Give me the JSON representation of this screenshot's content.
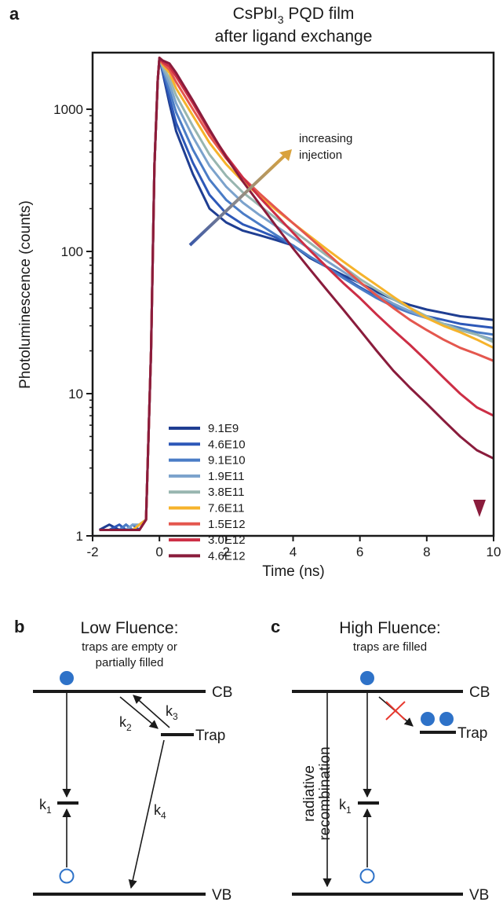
{
  "figure": {
    "panel_a": "a",
    "panel_b": "b",
    "panel_c": "c"
  },
  "chart_data": {
    "type": "line",
    "title": "CsPbI3 PQD film",
    "title_line1_prefix": "CsPbI",
    "title_line1_sub": "3",
    "title_line1_suffix": " PQD film",
    "subtitle": "after ligand exchange",
    "xlabel": "Time (ns)",
    "ylabel": "Photoluminescence (counts)",
    "xlim": [
      -2,
      10
    ],
    "ylim": [
      1,
      2500
    ],
    "yscale": "log",
    "xticks": [
      "-2",
      "0",
      "2",
      "4",
      "6",
      "8",
      "10"
    ],
    "yticks": [
      "1",
      "10",
      "100",
      "1000"
    ],
    "legend_position": "bottom-left",
    "annotations": {
      "arrow_text_line1": "increasing",
      "arrow_text_line2": "injection"
    },
    "x": [
      -1.8,
      -1.5,
      -1.2,
      -1.0,
      -0.8,
      -0.6,
      -0.4,
      -0.25,
      -0.15,
      -0.05,
      0.0,
      0.1,
      0.3,
      0.5,
      1.0,
      1.5,
      2.0,
      2.5,
      3.0,
      3.5,
      4.0,
      4.5,
      5.0,
      5.5,
      6.0,
      6.5,
      7.0,
      7.5,
      8.0,
      8.5,
      9.0,
      9.5,
      10.0
    ],
    "series": [
      {
        "name": "9.1E9",
        "color": "#1f3e92",
        "values": [
          1.1,
          1.2,
          1.1,
          1.2,
          1.1,
          1.2,
          1.3,
          20,
          400,
          1600,
          2300,
          1800,
          1100,
          700,
          350,
          200,
          160,
          140,
          130,
          120,
          110,
          90,
          78,
          68,
          60,
          52,
          46,
          42,
          39,
          37,
          35,
          34,
          33
        ]
      },
      {
        "name": "4.6E10",
        "color": "#2d58b8",
        "values": [
          1.1,
          1.1,
          1.2,
          1.1,
          1.2,
          1.1,
          1.3,
          20,
          400,
          1600,
          2300,
          1850,
          1200,
          800,
          420,
          250,
          185,
          155,
          140,
          125,
          110,
          92,
          78,
          66,
          56,
          48,
          42,
          38,
          35,
          33,
          31,
          30,
          29
        ]
      },
      {
        "name": "9.1E10",
        "color": "#4a7cc6",
        "values": [
          1.1,
          1.1,
          1.1,
          1.2,
          1.1,
          1.2,
          1.3,
          20,
          400,
          1600,
          2300,
          1900,
          1350,
          950,
          520,
          320,
          230,
          185,
          155,
          130,
          110,
          92,
          78,
          65,
          55,
          47,
          41,
          37,
          34,
          31,
          29,
          27,
          26
        ]
      },
      {
        "name": "1.9E11",
        "color": "#7ba2cc",
        "values": [
          1.1,
          1.1,
          1.1,
          1.1,
          1.2,
          1.2,
          1.3,
          20,
          400,
          1600,
          2300,
          1950,
          1500,
          1100,
          640,
          400,
          285,
          220,
          180,
          150,
          125,
          104,
          86,
          72,
          60,
          50,
          43,
          38,
          34,
          31,
          28,
          26,
          24
        ]
      },
      {
        "name": "3.8E11",
        "color": "#98b6b0",
        "values": [
          1.1,
          1.1,
          1.1,
          1.1,
          1.1,
          1.2,
          1.3,
          20,
          400,
          1600,
          2300,
          2000,
          1650,
          1250,
          760,
          480,
          340,
          260,
          210,
          170,
          140,
          115,
          94,
          78,
          64,
          54,
          46,
          40,
          35,
          31,
          28,
          26,
          23
        ]
      },
      {
        "name": "7.6E11",
        "color": "#f6b32b",
        "values": [
          1.1,
          1.1,
          1.1,
          1.1,
          1.1,
          1.2,
          1.3,
          20,
          400,
          1600,
          2300,
          2050,
          1800,
          1400,
          900,
          580,
          410,
          310,
          245,
          195,
          158,
          128,
          104,
          85,
          70,
          58,
          48,
          40,
          34,
          30,
          27,
          24,
          21
        ]
      },
      {
        "name": "1.5E12",
        "color": "#e4574e",
        "values": [
          1.1,
          1.1,
          1.1,
          1.1,
          1.1,
          1.1,
          1.3,
          20,
          400,
          1600,
          2300,
          2100,
          1900,
          1550,
          1000,
          650,
          450,
          330,
          255,
          200,
          158,
          125,
          98,
          77,
          61,
          49,
          40,
          33,
          28,
          24,
          21,
          19,
          17
        ]
      },
      {
        "name": "3.0E12",
        "color": "#cc2e45",
        "values": [
          1.1,
          1.1,
          1.1,
          1.1,
          1.1,
          1.1,
          1.3,
          20,
          400,
          1600,
          2300,
          2150,
          2000,
          1700,
          1100,
          700,
          470,
          330,
          240,
          180,
          135,
          102,
          78,
          60,
          47,
          36,
          28,
          22,
          17,
          13,
          10,
          8,
          7
        ]
      },
      {
        "name": "4.6E12",
        "color": "#8a1c3c",
        "values": [
          1.1,
          1.1,
          1.1,
          1.1,
          1.1,
          1.1,
          1.3,
          20,
          400,
          1600,
          2300,
          2200,
          2100,
          1800,
          1150,
          720,
          460,
          310,
          215,
          150,
          105,
          75,
          54,
          39,
          28,
          20,
          14.5,
          11,
          8.5,
          6.5,
          5,
          4,
          3.5
        ]
      }
    ]
  },
  "diagram_b": {
    "title": "Low Fluence:",
    "subtitle_line1": "traps are empty or",
    "subtitle_line2": "partially filled",
    "cb": "CB",
    "vb": "VB",
    "trap": "Trap",
    "k1": "k",
    "k1_sub": "1",
    "k2": "k",
    "k2_sub": "2",
    "k3": "k",
    "k3_sub": "3",
    "k4": "k",
    "k4_sub": "4"
  },
  "diagram_c": {
    "title": "High Fluence:",
    "subtitle": "traps are filled",
    "cb": "CB",
    "vb": "VB",
    "trap": "Trap",
    "k1": "k",
    "k1_sub": "1",
    "side_label_line1": "radiative",
    "side_label_line2": "recombination"
  },
  "colors": {
    "electron": "#2e72c8",
    "blocked_cross": "#e8392f",
    "injection_arrow": "#d9a23c",
    "time_arrow": "#8a1c3c"
  }
}
